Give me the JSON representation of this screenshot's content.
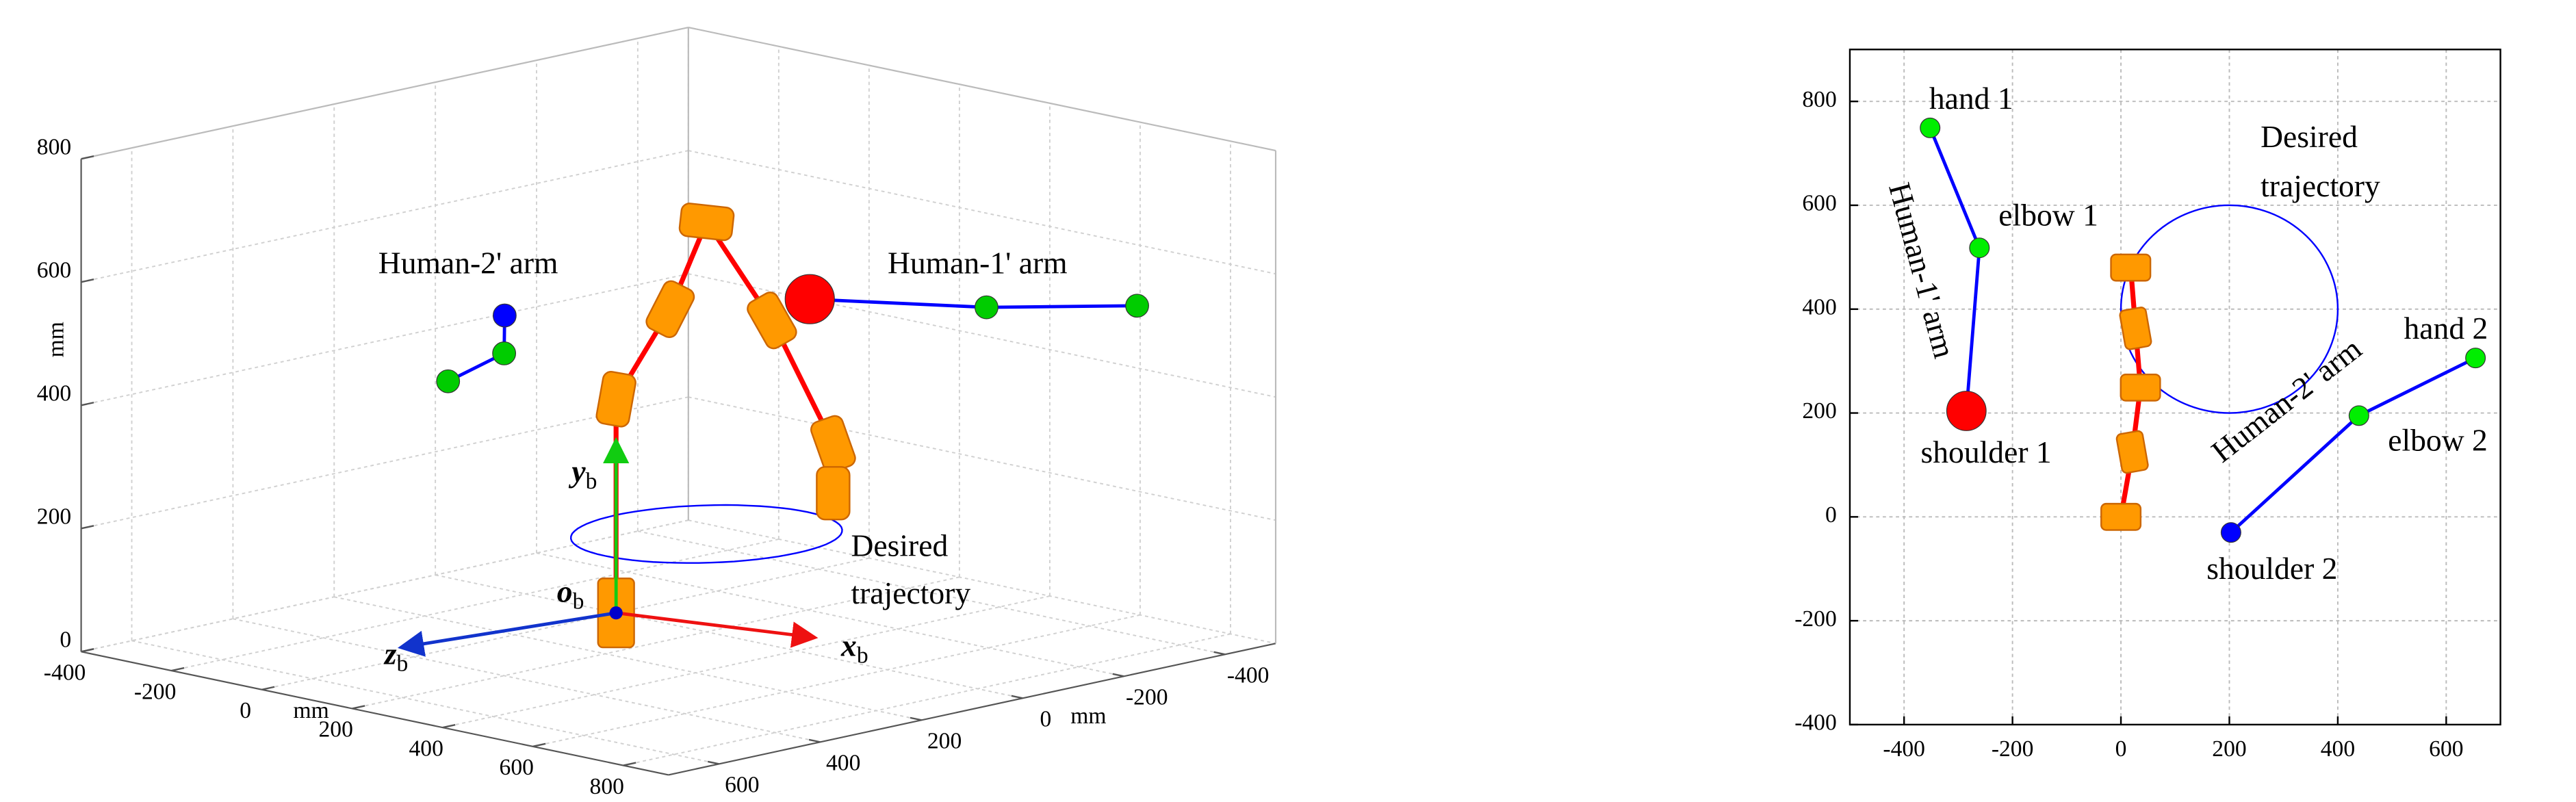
{
  "chart_data": [
    {
      "type": "scatter3d",
      "xlabel": "mm",
      "ylabel": "mm",
      "zlabel": "mm",
      "xlim": [
        -500,
        700
      ],
      "ylim": [
        -400,
        900
      ],
      "zlim": [
        0,
        800
      ],
      "xticks": [
        -400,
        -200,
        0,
        200,
        400,
        600
      ],
      "yticks": [
        -400,
        -200,
        0,
        200,
        400,
        600,
        800
      ],
      "zticks": [
        0,
        200,
        400,
        600,
        800
      ],
      "grid": true,
      "series": [
        {
          "name": "Human-1' arm",
          "color": "#0000ff",
          "x": [
            -215,
            -349,
            -503
          ],
          "y": [
            188,
            429,
            590
          ],
          "z": [
            500,
            500,
            500
          ],
          "marker_colors": [
            "#ff0000",
            "#00cc00",
            "#00cc00"
          ]
        },
        {
          "name": "Human-2' arm",
          "color": "#0000ff",
          "x": [
            -128,
            48,
            232
          ],
          "y": [
            -390,
            -194,
            -112
          ],
          "z": [
            400,
            400,
            400
          ],
          "marker_colors": [
            "#0000ff",
            "#00cc00",
            "#00cc00"
          ]
        }
      ],
      "robot": {
        "color": "#ff0000",
        "joint_color": "#ff9900",
        "x": [
          0,
          0,
          -107,
          -179,
          -308,
          -429,
          -429
        ],
        "y": [
          0,
          0,
          0,
          0,
          0,
          0,
          0
        ],
        "z": [
          0,
          347,
          474,
          603,
          420,
          198,
          118
        ]
      },
      "trajectory": {
        "center": [
          -168,
          12,
          100
        ],
        "radius": 200,
        "color": "#0000ff",
        "label": [
          "Desired",
          "trajectory"
        ]
      },
      "frame_labels": [
        {
          "symbol": "x",
          "subscript": "b"
        },
        {
          "symbol": "y",
          "subscript": "b"
        },
        {
          "symbol": "z",
          "subscript": "b"
        },
        {
          "symbol": "o",
          "subscript": "b"
        }
      ]
    },
    {
      "type": "scatter",
      "xlim": [
        -500,
        700
      ],
      "ylim": [
        -400,
        900
      ],
      "xticks": [
        -400,
        -200,
        0,
        200,
        400,
        600
      ],
      "yticks": [
        -400,
        -200,
        0,
        200,
        400,
        600,
        800
      ],
      "grid": true,
      "series": [
        {
          "name": "Human-1' arm",
          "color": "#0000ff",
          "x": [
            -352,
            -261,
            -285
          ],
          "y": [
            749,
            518,
            204
          ],
          "point_labels": [
            "hand 1",
            "elbow 1",
            "shoulder 1"
          ],
          "marker_colors": [
            "#00ee00",
            "#00ee00",
            "#ff0000"
          ]
        },
        {
          "name": "Human-2' arm",
          "color": "#0000ff",
          "x": [
            654,
            439,
            203
          ],
          "y": [
            306,
            195,
            -30
          ],
          "point_labels": [
            "hand 2",
            "elbow 2",
            "shoulder 2"
          ],
          "marker_colors": [
            "#00ee00",
            "#00ee00",
            "#0000ff"
          ]
        }
      ],
      "robot": {
        "color": "#ff0000",
        "joint_color": "#ff9900",
        "x": [
          0,
          21,
          36,
          27,
          18
        ],
        "y": [
          0,
          125,
          249,
          363,
          480
        ]
      },
      "trajectory": {
        "center": [
          200,
          400
        ],
        "radius": 200,
        "color": "#0000ff",
        "label": [
          "Desired",
          "trajectory"
        ]
      }
    }
  ]
}
